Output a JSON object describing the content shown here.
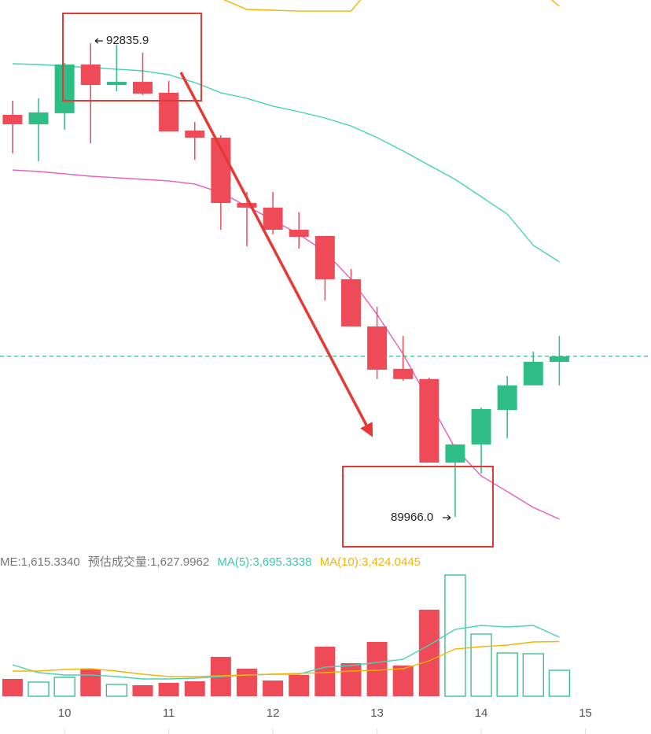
{
  "chart_data": [
    {
      "type": "candlestick",
      "x": [
        9.5,
        9.75,
        10,
        10.25,
        10.5,
        10.75,
        11,
        11.25,
        11.5,
        11.75,
        12,
        12.25,
        12.5,
        12.75,
        13,
        13.25,
        13.5,
        13.75,
        14,
        14.25,
        14.5,
        14.75
      ],
      "open": [
        92402,
        92345,
        92412,
        92707,
        92583,
        92602,
        92536,
        92307,
        92264,
        91868,
        91840,
        91706,
        91668,
        91406,
        91120,
        90863,
        90801,
        90295,
        90405,
        90614,
        90763,
        90905
      ],
      "high": [
        92488,
        92502,
        92717,
        92835.9,
        92826,
        92779,
        92607,
        92359,
        92278,
        91935,
        91935,
        91811,
        91668,
        91468,
        91239,
        91063,
        90810,
        90405,
        90629,
        90820,
        90967,
        91063
      ],
      "low": [
        92168,
        92121,
        92312,
        92230,
        92545,
        92521,
        92302,
        92130,
        91706,
        91606,
        91678,
        91592,
        91277,
        91120,
        90801,
        90791,
        90295,
        89966.0,
        90228,
        90443,
        90763,
        90763
      ],
      "close": [
        92345,
        92417,
        92707,
        92583,
        92602,
        92531,
        92302,
        92264,
        91868,
        91840,
        91706,
        91663,
        91406,
        91120,
        90858,
        90801,
        90295,
        90405,
        90619,
        90763,
        90906,
        90939
      ],
      "up_color": "#2ebd85",
      "down_color": "#ef4a57",
      "series": [
        {
          "color": "#f5b400",
          "values": [
            null,
            null,
            null,
            null,
            null,
            null,
            null,
            null,
            93108,
            93041,
            93036,
            93031,
            93031,
            93031,
            93217,
            null,
            null,
            null,
            null,
            null,
            93193,
            93060
          ]
        },
        {
          "color": "#45d3b6",
          "values": [
            92712,
            92707,
            92698,
            92688,
            92679,
            92669,
            92645,
            92598,
            92536,
            92502,
            92455,
            92421,
            92383,
            92335,
            92264,
            92183,
            92097,
            92011,
            91906,
            91801,
            91611,
            91511
          ]
        },
        {
          "color": "#e65cbf",
          "values": [
            92068,
            92059,
            92045,
            92030,
            92021,
            92011,
            92002,
            91983,
            91930,
            91849,
            91764,
            91678,
            91573,
            91406,
            91192,
            90953,
            90667,
            90381,
            90214,
            90119,
            90023,
            89952
          ]
        }
      ],
      "last_price_line": true,
      "high_label": "92835.9",
      "low_label": "89966.0",
      "xlim": [
        9.38,
        15.63
      ],
      "ylim": [
        89761,
        93098
      ]
    },
    {
      "type": "bar",
      "legend": [
        "ME:1,615.3340",
        "预估成交量:1,627.9962",
        "MA(5):3,695.3338",
        "MA(10):3,424.0445"
      ],
      "x": [
        9.5,
        9.75,
        10,
        10.25,
        10.5,
        10.75,
        11,
        11.25,
        11.5,
        11.75,
        12,
        12.25,
        12.5,
        12.75,
        13,
        13.25,
        13.5,
        13.75,
        14,
        14.25,
        14.5,
        14.75
      ],
      "values": [
        1085,
        887,
        1184,
        1676,
        740,
        690,
        838,
        937,
        2466,
        1726,
        986,
        1332,
        3107,
        2072,
        3403,
        1924,
        5425,
        7595,
        3896,
        2713,
        2663,
        1627.9962
      ],
      "series": [
        {
          "name": "MA(5)",
          "color": "#45d3b6",
          "values": [
            1972,
            1479,
            1331,
            1331,
            1233,
            1085,
            1085,
            1134,
            1233,
            1331,
            1380,
            1380,
            1824,
            1923,
            2120,
            2317,
            3205,
            4191,
            4437,
            4338,
            4437,
            3695.3338
          ]
        },
        {
          "name": "MA(10)",
          "color": "#f5b400",
          "values": [
            1578,
            1578,
            1676,
            1726,
            1578,
            1380,
            1233,
            1233,
            1282,
            1331,
            1380,
            1430,
            1479,
            1578,
            1627,
            1726,
            2219,
            2958,
            3106,
            3205,
            3402,
            3424.0445
          ]
        }
      ],
      "xlim": [
        9.38,
        15.63
      ],
      "ylim": [
        0,
        7888
      ],
      "xticks": [
        10,
        11,
        12,
        13,
        14,
        15
      ]
    }
  ]
}
